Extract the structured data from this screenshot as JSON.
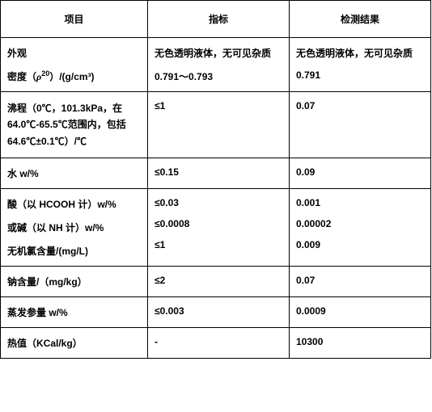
{
  "headers": {
    "c1": "项目",
    "c2": "指标",
    "c3": "检测结果"
  },
  "rows": [
    {
      "c1a": "外观",
      "c1b_pre": "密度（",
      "c1b_rho": "ρ",
      "c1b_sup": "20",
      "c1b_post": "）/(g/cm³)",
      "c2a": "无色透明液体，无可见杂质",
      "c2b": "0.791～0.793",
      "c3a": "无色透明液体，无可见杂质",
      "c3b": "0.791"
    },
    {
      "c1": "沸程（0℃，101.3kPa，在 64.0℃-65.5℃范围内，包括 64.6℃±0.1℃）/℃",
      "c2": "≤1",
      "c3": "0.07"
    },
    {
      "c1": "水 w/%",
      "c2": "≤0.15",
      "c3": "0.09"
    },
    {
      "c1a": "酸（以 HCOOH 计）w/%",
      "c1b": "或碱（以 NH 计）w/%",
      "c1c": "无机氯含量/(mg/L)",
      "c2a": "≤0.03",
      "c2b": "≤0.0008",
      "c2c": "≤1",
      "c3a": "0.001",
      "c3b": "0.00002",
      "c3c": "0.009"
    },
    {
      "c1": "钠含量/（mg/kg）",
      "c2": "≤2",
      "c3": "0.07"
    },
    {
      "c1": "蒸发参量 w/%",
      "c2": "≤0.003",
      "c3": "0.0009"
    },
    {
      "c1": "热值（KCal/kg）",
      "c2": "-",
      "c3": "10300"
    }
  ]
}
